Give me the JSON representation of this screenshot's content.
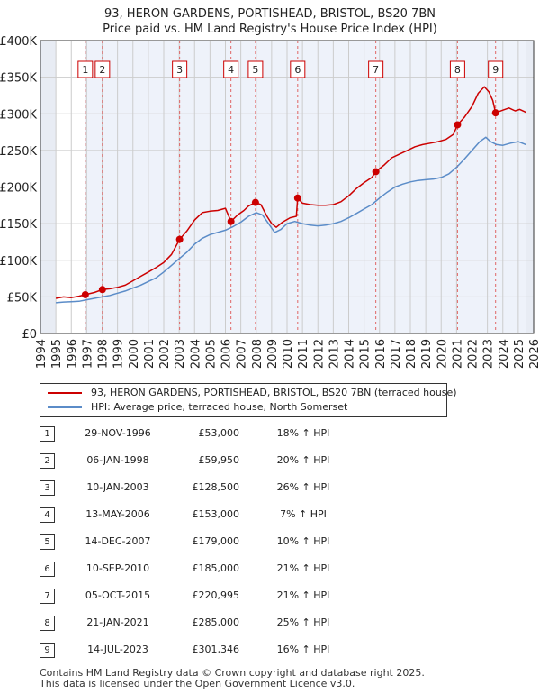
{
  "title_line1": "93, HERON GARDENS, PORTISHEAD, BRISTOL, BS20 7BN",
  "title_line2": "Price paid vs. HM Land Registry's House Price Index (HPI)",
  "chart_data": {
    "type": "line",
    "xlim": [
      1994,
      2026
    ],
    "ylim": [
      0,
      400000
    ],
    "y_ticks": [
      {
        "value": 0,
        "label": "£0"
      },
      {
        "value": 50000,
        "label": "£50K"
      },
      {
        "value": 100000,
        "label": "£100K"
      },
      {
        "value": 150000,
        "label": "£150K"
      },
      {
        "value": 200000,
        "label": "£200K"
      },
      {
        "value": 250000,
        "label": "£250K"
      },
      {
        "value": 300000,
        "label": "£300K"
      },
      {
        "value": 350000,
        "label": "£350K"
      },
      {
        "value": 400000,
        "label": "£400K"
      }
    ],
    "x_ticks": [
      1994,
      1995,
      1996,
      1997,
      1998,
      1999,
      2000,
      2001,
      2002,
      2003,
      2004,
      2005,
      2006,
      2007,
      2008,
      2009,
      2010,
      2011,
      2012,
      2013,
      2014,
      2015,
      2016,
      2017,
      2018,
      2019,
      2020,
      2021,
      2022,
      2023,
      2024,
      2025,
      2026
    ],
    "data_start": 1995.0,
    "data_end": 2025.5,
    "series": [
      {
        "name": "93, HERON GARDENS, PORTISHEAD, BRISTOL, BS20 7BN (terraced house)",
        "color": "#cc0000",
        "points": [
          [
            1995.0,
            48000
          ],
          [
            1995.5,
            50000
          ],
          [
            1996.0,
            49000
          ],
          [
            1996.5,
            51000
          ],
          [
            1996.91,
            53000
          ],
          [
            1997.5,
            56000
          ],
          [
            1998.02,
            59950
          ],
          [
            1998.5,
            61000
          ],
          [
            1999.0,
            63000
          ],
          [
            1999.5,
            66000
          ],
          [
            2000.0,
            72000
          ],
          [
            2000.5,
            78000
          ],
          [
            2001.0,
            84000
          ],
          [
            2001.5,
            90000
          ],
          [
            2002.0,
            97000
          ],
          [
            2002.5,
            108000
          ],
          [
            2003.03,
            128500
          ],
          [
            2003.5,
            140000
          ],
          [
            2004.0,
            155000
          ],
          [
            2004.5,
            165000
          ],
          [
            2005.0,
            167000
          ],
          [
            2005.5,
            168000
          ],
          [
            2006.0,
            171000
          ],
          [
            2006.36,
            153000
          ],
          [
            2006.8,
            162000
          ],
          [
            2007.2,
            168000
          ],
          [
            2007.5,
            174000
          ],
          [
            2007.95,
            179000
          ],
          [
            2008.3,
            176000
          ],
          [
            2008.7,
            160000
          ],
          [
            2009.0,
            150000
          ],
          [
            2009.3,
            145000
          ],
          [
            2009.7,
            152000
          ],
          [
            2010.2,
            158000
          ],
          [
            2010.6,
            160000
          ],
          [
            2010.69,
            185000
          ],
          [
            2011.0,
            178000
          ],
          [
            2011.5,
            176000
          ],
          [
            2012.0,
            175000
          ],
          [
            2012.5,
            175000
          ],
          [
            2013.0,
            176000
          ],
          [
            2013.5,
            180000
          ],
          [
            2014.0,
            188000
          ],
          [
            2014.5,
            198000
          ],
          [
            2015.0,
            206000
          ],
          [
            2015.5,
            213000
          ],
          [
            2015.76,
            220995
          ],
          [
            2016.3,
            230000
          ],
          [
            2016.8,
            240000
          ],
          [
            2017.3,
            245000
          ],
          [
            2017.8,
            250000
          ],
          [
            2018.3,
            255000
          ],
          [
            2018.8,
            258000
          ],
          [
            2019.3,
            260000
          ],
          [
            2019.8,
            262000
          ],
          [
            2020.3,
            265000
          ],
          [
            2020.8,
            272000
          ],
          [
            2021.06,
            285000
          ],
          [
            2021.5,
            295000
          ],
          [
            2022.0,
            310000
          ],
          [
            2022.4,
            328000
          ],
          [
            2022.8,
            337000
          ],
          [
            2023.1,
            330000
          ],
          [
            2023.35,
            318000
          ],
          [
            2023.53,
            301346
          ],
          [
            2024.0,
            305000
          ],
          [
            2024.4,
            308000
          ],
          [
            2024.8,
            304000
          ],
          [
            2025.1,
            306000
          ],
          [
            2025.5,
            302000
          ]
        ]
      },
      {
        "name": "HPI: Average price, terraced house, North Somerset",
        "color": "#5b8cc8",
        "points": [
          [
            1995.0,
            42000
          ],
          [
            1995.5,
            43000
          ],
          [
            1996.0,
            43500
          ],
          [
            1996.5,
            44000
          ],
          [
            1997.0,
            46000
          ],
          [
            1997.5,
            48000
          ],
          [
            1998.0,
            50000
          ],
          [
            1998.5,
            52000
          ],
          [
            1999.0,
            55000
          ],
          [
            1999.5,
            58000
          ],
          [
            2000.0,
            62000
          ],
          [
            2000.5,
            66000
          ],
          [
            2001.0,
            71000
          ],
          [
            2001.5,
            76000
          ],
          [
            2002.0,
            84000
          ],
          [
            2002.5,
            93000
          ],
          [
            2003.0,
            102000
          ],
          [
            2003.5,
            111000
          ],
          [
            2004.0,
            122000
          ],
          [
            2004.5,
            130000
          ],
          [
            2005.0,
            135000
          ],
          [
            2005.5,
            138000
          ],
          [
            2006.0,
            141000
          ],
          [
            2006.5,
            146000
          ],
          [
            2007.0,
            152000
          ],
          [
            2007.5,
            160000
          ],
          [
            2008.0,
            165000
          ],
          [
            2008.4,
            162000
          ],
          [
            2008.8,
            150000
          ],
          [
            2009.2,
            138000
          ],
          [
            2009.6,
            142000
          ],
          [
            2010.0,
            150000
          ],
          [
            2010.5,
            153000
          ],
          [
            2011.0,
            150000
          ],
          [
            2011.5,
            148000
          ],
          [
            2012.0,
            147000
          ],
          [
            2012.5,
            148000
          ],
          [
            2013.0,
            150000
          ],
          [
            2013.5,
            153000
          ],
          [
            2014.0,
            158000
          ],
          [
            2014.5,
            164000
          ],
          [
            2015.0,
            170000
          ],
          [
            2015.5,
            176000
          ],
          [
            2016.0,
            185000
          ],
          [
            2016.5,
            193000
          ],
          [
            2017.0,
            200000
          ],
          [
            2017.5,
            204000
          ],
          [
            2018.0,
            207000
          ],
          [
            2018.5,
            209000
          ],
          [
            2019.0,
            210000
          ],
          [
            2019.5,
            211000
          ],
          [
            2020.0,
            213000
          ],
          [
            2020.5,
            218000
          ],
          [
            2021.0,
            227000
          ],
          [
            2021.5,
            238000
          ],
          [
            2022.0,
            250000
          ],
          [
            2022.5,
            262000
          ],
          [
            2022.9,
            268000
          ],
          [
            2023.2,
            262000
          ],
          [
            2023.6,
            258000
          ],
          [
            2024.0,
            257000
          ],
          [
            2024.5,
            260000
          ],
          [
            2025.0,
            262000
          ],
          [
            2025.5,
            258000
          ]
        ]
      }
    ]
  },
  "legend": {
    "property_label": "93, HERON GARDENS, PORTISHEAD, BRISTOL, BS20 7BN (terraced house)",
    "hpi_label": "HPI: Average price, terraced house, North Somerset"
  },
  "sales": [
    {
      "num": "1",
      "t": 1996.91,
      "value": 53000,
      "date": "29-NOV-1996",
      "price": "£53,000",
      "hpi": "18% ↑ HPI"
    },
    {
      "num": "2",
      "t": 1998.02,
      "value": 59950,
      "date": "06-JAN-1998",
      "price": "£59,950",
      "hpi": "20% ↑ HPI"
    },
    {
      "num": "3",
      "t": 2003.03,
      "value": 128500,
      "date": "10-JAN-2003",
      "price": "£128,500",
      "hpi": "26% ↑ HPI"
    },
    {
      "num": "4",
      "t": 2006.36,
      "value": 153000,
      "date": "13-MAY-2006",
      "price": "£153,000",
      "hpi": "7% ↑ HPI"
    },
    {
      "num": "5",
      "t": 2007.95,
      "value": 179000,
      "date": "14-DEC-2007",
      "price": "£179,000",
      "hpi": "10% ↑ HPI"
    },
    {
      "num": "6",
      "t": 2010.69,
      "value": 185000,
      "date": "10-SEP-2010",
      "price": "£185,000",
      "hpi": "21% ↑ HPI"
    },
    {
      "num": "7",
      "t": 2015.76,
      "value": 220995,
      "date": "05-OCT-2015",
      "price": "£220,995",
      "hpi": "21% ↑ HPI"
    },
    {
      "num": "8",
      "t": 2021.06,
      "value": 285000,
      "date": "21-JAN-2021",
      "price": "£285,000",
      "hpi": "25% ↑ HPI"
    },
    {
      "num": "9",
      "t": 2023.53,
      "value": 301346,
      "date": "14-JUL-2023",
      "price": "£301,346",
      "hpi": "16% ↑ HPI"
    }
  ],
  "footer_line1": "Contains HM Land Registry data © Crown copyright and database right 2025.",
  "footer_line2": "This data is licensed under the Open Government Licence v3.0."
}
